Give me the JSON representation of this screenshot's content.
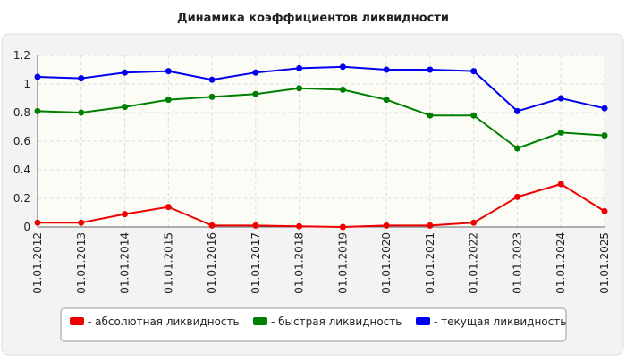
{
  "chart_data": {
    "type": "line",
    "title": "Динамика коэффициентов ликвидности",
    "x": [
      "01.01.2012",
      "01.01.2013",
      "01.01.2014",
      "01.01.2015",
      "01.01.2016",
      "01.01.2017",
      "01.01.2018",
      "01.01.2019",
      "01.01.2020",
      "01.01.2021",
      "01.01.2022",
      "01.01.2023",
      "01.01.2024",
      "01.01.2025"
    ],
    "series": [
      {
        "name": "- абсолютная ликвидность",
        "color": "#ee0000",
        "values": [
          0.03,
          0.03,
          0.09,
          0.14,
          0.01,
          0.01,
          0.005,
          0.0,
          0.01,
          0.01,
          0.03,
          0.21,
          0.3,
          0.11
        ]
      },
      {
        "name": "- быстрая ликвидность",
        "color": "#008000",
        "values": [
          0.81,
          0.8,
          0.84,
          0.89,
          0.91,
          0.93,
          0.97,
          0.96,
          0.89,
          0.78,
          0.78,
          0.55,
          0.66,
          0.64
        ]
      },
      {
        "name": "- текущая ликвидность",
        "color": "#0000ee",
        "values": [
          1.05,
          1.04,
          1.08,
          1.09,
          1.03,
          1.08,
          1.11,
          1.12,
          1.1,
          1.1,
          1.09,
          0.81,
          0.9,
          0.83
        ]
      }
    ],
    "ylim": [
      0,
      1.2
    ],
    "yticks": [
      0,
      0.2,
      0.4,
      0.6,
      0.8,
      1,
      1.2
    ],
    "grid": true
  }
}
